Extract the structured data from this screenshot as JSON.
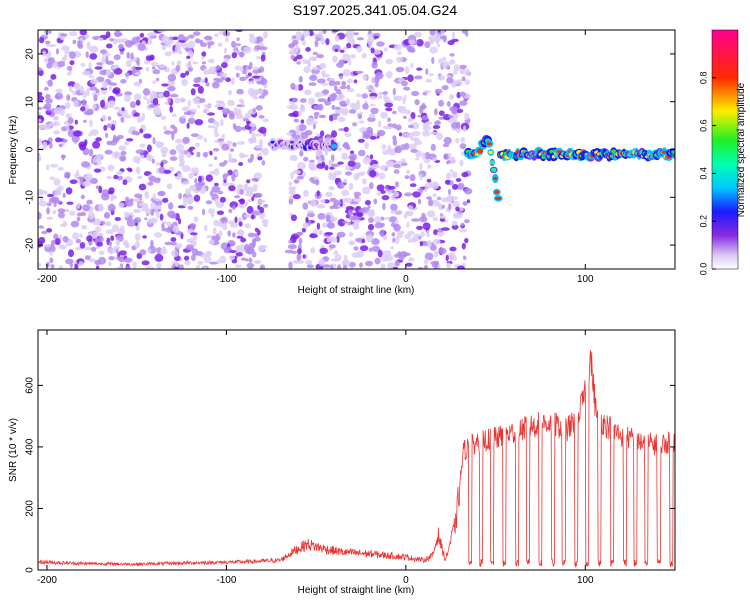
{
  "title": "S197.2025.341.05.04.G24",
  "chart_data": [
    {
      "type": "heatmap",
      "title": "S197.2025.341.05.04.G24",
      "xlabel": "Height of straight line (km)",
      "ylabel": "Frequency (Hz)",
      "xlim": [
        -205,
        150
      ],
      "ylim": [
        -25,
        25
      ],
      "xticks": [
        -200,
        -100,
        0,
        100
      ],
      "xtick_labels": [
        "-200",
        "-100",
        "0",
        "100"
      ],
      "yticks": [
        20,
        10,
        0,
        -10,
        -20
      ],
      "ytick_labels": [
        "20",
        "10",
        "0",
        "-10",
        "-20"
      ],
      "colorbar": {
        "label": "Normalized spectral amplitude",
        "range": [
          0,
          1
        ],
        "ticks": [
          0.0,
          0.2,
          0.4,
          0.6,
          0.8
        ],
        "tick_labels": [
          "0.0",
          "0.2",
          "0.4",
          "0.6",
          "0.8"
        ],
        "colormap": "white-purple-blue-cyan-green-yellow-red-magenta"
      },
      "regions": [
        {
          "name": "noise",
          "x_range": [
            -205,
            -78
          ],
          "amplitude": 0.1
        },
        {
          "name": "noise",
          "x_range": [
            -65,
            35
          ],
          "amplitude": 0.08
        },
        {
          "name": "signal",
          "x_range": [
            -75,
            -40
          ],
          "frequency": 1,
          "amplitude": 0.3
        },
        {
          "name": "signal",
          "x_range": [
            34,
            150
          ],
          "frequency": -1,
          "amplitude": 0.85
        }
      ],
      "colors": {
        "axis": "#000000"
      }
    },
    {
      "type": "line",
      "xlabel": "Height of straight line (km)",
      "ylabel": "SNR (10 * v/v)",
      "xlim": [
        -205,
        150
      ],
      "ylim": [
        0,
        780
      ],
      "xticks": [
        -200,
        -100,
        0,
        100
      ],
      "xtick_labels": [
        "-200",
        "-100",
        "0",
        "100"
      ],
      "yticks": [
        0,
        200,
        400,
        600
      ],
      "ytick_labels": [
        "0",
        "200",
        "400",
        "600"
      ],
      "series": [
        {
          "name": "SNR",
          "color": "#ee3333",
          "x": [
            -205,
            -180,
            -150,
            -120,
            -90,
            -70,
            -62,
            -55,
            -45,
            -35,
            -20,
            0,
            10,
            15,
            18,
            22,
            28,
            32,
            40,
            50,
            60,
            70,
            80,
            90,
            95,
            100,
            103,
            106,
            110,
            120,
            130,
            140,
            150
          ],
          "y": [
            25,
            20,
            18,
            22,
            25,
            30,
            60,
            80,
            65,
            55,
            50,
            40,
            30,
            45,
            110,
            30,
            150,
            380,
            410,
            420,
            440,
            460,
            470,
            450,
            480,
            560,
            680,
            500,
            470,
            430,
            410,
            400,
            410
          ],
          "dropouts_x": [
            36,
            42,
            48,
            55,
            62,
            68,
            75,
            82,
            88,
            95,
            101,
            108,
            115,
            122,
            128,
            134,
            141,
            148
          ]
        }
      ]
    }
  ]
}
